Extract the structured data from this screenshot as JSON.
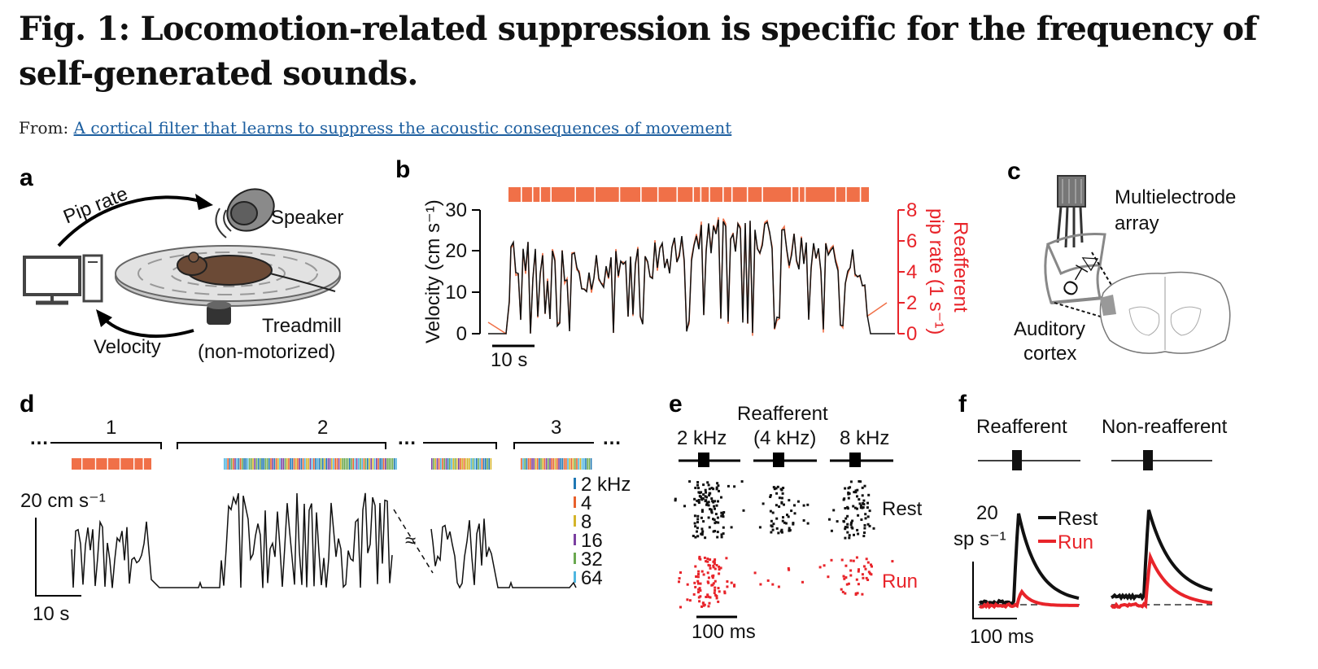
{
  "header": {
    "title": "Fig. 1: Locomotion-related suppression is specific for the frequency of self-generated sounds.",
    "from_prefix": "From:",
    "source_link": "A cortical filter that learns to suppress the acoustic consequences of movement"
  },
  "panel_a": {
    "label": "a",
    "pip_rate": "Pip rate",
    "speaker": "Speaker",
    "velocity": "Velocity",
    "treadmill_line1": "Treadmill",
    "treadmill_line2": "(non-motorized)"
  },
  "panel_b": {
    "label": "b",
    "ylabel_left": "Velocity (cm s⁻¹)",
    "ylabel_right_line1": "Reafferent",
    "ylabel_right_line2": "pip rate (1 s⁻¹)",
    "left_ticks": [
      "0",
      "10",
      "20",
      "30"
    ],
    "right_ticks": [
      "0",
      "2",
      "4",
      "6",
      "8"
    ],
    "scale_bar": "10 s"
  },
  "panel_c": {
    "label": "c",
    "array_line1": "Multielectrode",
    "array_line2": "array",
    "cortex_line1": "Auditory",
    "cortex_line2": "cortex"
  },
  "panel_d": {
    "label": "d",
    "dots": "…",
    "sessions": [
      "1",
      "2",
      "3"
    ],
    "velocity_scale": "20 cm s⁻¹",
    "time_scale": "10 s",
    "freq_legend": [
      "2 kHz",
      "4",
      "8",
      "16",
      "32",
      "64"
    ],
    "freq_colors": [
      "#1f77b4",
      "#e8602c",
      "#d4b42a",
      "#7a3fa0",
      "#6aa84f",
      "#4fb6e0"
    ]
  },
  "panel_e": {
    "label": "e",
    "reafferent": "Reafferent",
    "freqs": [
      "2 kHz",
      "(4 kHz)",
      "8 kHz"
    ],
    "rest": "Rest",
    "run": "Run",
    "time_scale": "100 ms"
  },
  "panel_f": {
    "label": "f",
    "reafferent": "Reafferent",
    "non_reafferent": "Non-reafferent",
    "rate_scale_line1": "20",
    "rate_scale_line2": "sp s⁻¹",
    "legend_rest": "Rest",
    "legend_run": "Run",
    "time_scale": "100 ms"
  },
  "colors": {
    "accent_orange": "#f07048",
    "run_red": "#e8242a",
    "link_blue": "#1d5fa0"
  }
}
